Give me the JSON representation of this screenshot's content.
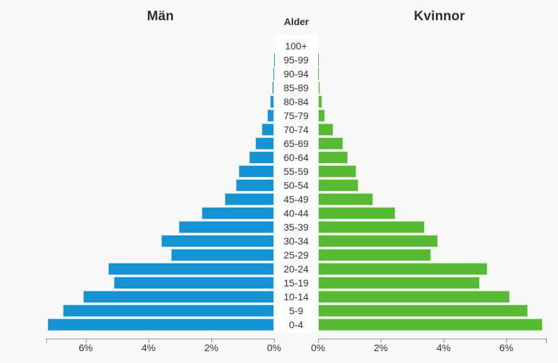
{
  "titles": {
    "left": "Män",
    "center": "Alder",
    "right": "Kvinnor"
  },
  "colors": {
    "male_bar": "#1593d2",
    "female_bar": "#57ba33",
    "background": "#f8f8f8",
    "label_column": "#fdfdfd",
    "axis": "#8f8f8f",
    "text": "#333333"
  },
  "chart_data": {
    "type": "bar",
    "variant": "population-pyramid",
    "title_left": "Män",
    "title_right": "Kvinnor",
    "center_axis_title": "Alder",
    "unit": "%",
    "categories": [
      "100+",
      "95-99",
      "90-94",
      "85-89",
      "80-84",
      "75-79",
      "70-74",
      "65-69",
      "60-64",
      "55-59",
      "50-54",
      "45-49",
      "40-44",
      "35-39",
      "30-34",
      "25-29",
      "20-24",
      "15-19",
      "10-14",
      "5-9",
      "0-4"
    ],
    "series": [
      {
        "name": "Män",
        "side": "left",
        "color": "#1593d2",
        "values": [
          0.0,
          0.01,
          0.02,
          0.07,
          0.13,
          0.23,
          0.4,
          0.61,
          0.8,
          1.13,
          1.23,
          1.57,
          2.32,
          3.04,
          3.6,
          3.3,
          5.28,
          5.12,
          6.09,
          6.73,
          7.23
        ]
      },
      {
        "name": "Kvinnor",
        "side": "right",
        "color": "#57ba33",
        "values": [
          0.0,
          0.01,
          0.02,
          0.07,
          0.13,
          0.22,
          0.48,
          0.8,
          0.95,
          1.22,
          1.28,
          1.76,
          2.47,
          3.4,
          3.82,
          3.61,
          5.39,
          5.16,
          6.11,
          6.68,
          7.15
        ]
      }
    ],
    "axis": {
      "left_ticks": [
        "6%",
        "4%",
        "2%",
        "0%"
      ],
      "right_ticks": [
        "0%",
        "2%",
        "4%",
        "6%"
      ],
      "tick_step_pct": 2,
      "axis_max_pct": 7.3,
      "grid": false,
      "legend": "none"
    }
  }
}
